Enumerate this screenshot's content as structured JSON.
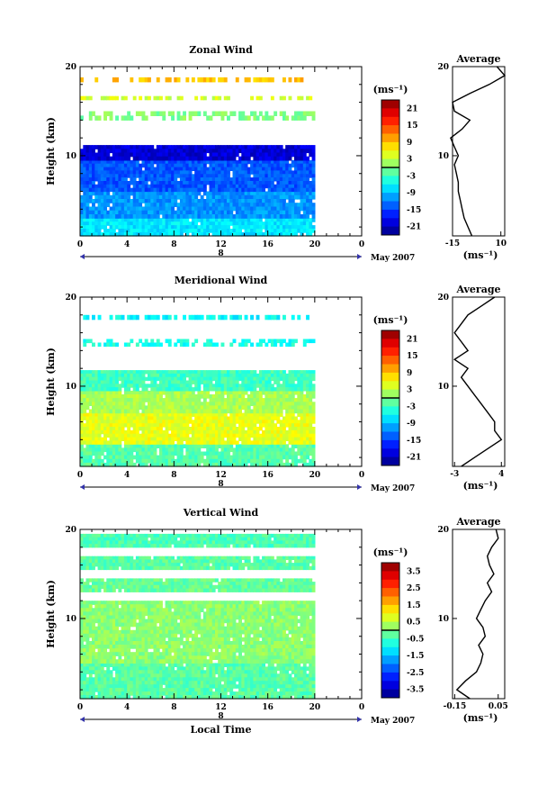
{
  "chart_data": [
    {
      "type": "heatmap",
      "title": "Zonal Wind",
      "ylabel": "Height (km)",
      "x_ticks": [
        "0",
        "4",
        "8",
        "12",
        "16",
        "20",
        "0"
      ],
      "y_ticks": [
        "10",
        "20"
      ],
      "xlim": [
        0,
        24
      ],
      "ylim": [
        1,
        20
      ],
      "date_marker": "8",
      "date_label": "May 2007",
      "colorbar": {
        "unit": "(ms⁻¹)",
        "ticks": [
          "21",
          "15",
          "9",
          "3",
          "-3",
          "-9",
          "-15",
          "-21"
        ],
        "range": [
          -24,
          24
        ]
      },
      "layers": [
        {
          "z0": 1.0,
          "z1": 3.0,
          "value": -7
        },
        {
          "z0": 3.0,
          "z1": 6.0,
          "value": -11
        },
        {
          "z0": 6.0,
          "z1": 9.5,
          "value": -14
        },
        {
          "z0": 9.5,
          "z1": 11.2,
          "value": -20
        },
        {
          "z0": 14.0,
          "z1": 15.0,
          "value": 0
        },
        {
          "z0": 16.3,
          "z1": 16.7,
          "value": 4
        },
        {
          "z0": 18.3,
          "z1": 18.8,
          "value": 9
        }
      ],
      "profile": {
        "title": "Average",
        "xlabel": "(ms⁻¹)",
        "x_ticks": [
          "-15",
          "10"
        ],
        "xlim": [
          -15,
          12
        ],
        "y_ticks": [
          "10",
          "20"
        ],
        "z": [
          1,
          2,
          3,
          4,
          5,
          6,
          7,
          8,
          9,
          10,
          11,
          12,
          13,
          14,
          15,
          16,
          17,
          18,
          19,
          20
        ],
        "values": [
          -5,
          -7,
          -9,
          -10,
          -11,
          -12,
          -12,
          -13,
          -14,
          -12,
          -14,
          -16,
          -10,
          -6,
          -14,
          -15,
          -6,
          4,
          12,
          8
        ]
      }
    },
    {
      "type": "heatmap",
      "title": "Meridional Wind",
      "ylabel": "Height (km)",
      "x_ticks": [
        "0",
        "4",
        "8",
        "12",
        "16",
        "20",
        "0"
      ],
      "y_ticks": [
        "10",
        "20"
      ],
      "xlim": [
        0,
        24
      ],
      "ylim": [
        1,
        20
      ],
      "date_marker": "8",
      "date_label": "May 2007",
      "colorbar": {
        "unit": "(ms⁻¹)",
        "ticks": [
          "21",
          "15",
          "9",
          "3",
          "-3",
          "-9",
          "-15",
          "-21"
        ],
        "range": [
          -24,
          24
        ]
      },
      "layers": [
        {
          "z0": 1.0,
          "z1": 3.5,
          "value": -2
        },
        {
          "z0": 3.5,
          "z1": 7.0,
          "value": 5
        },
        {
          "z0": 7.0,
          "z1": 9.5,
          "value": 2
        },
        {
          "z0": 9.5,
          "z1": 11.8,
          "value": -3
        },
        {
          "z0": 14.5,
          "z1": 15.3,
          "value": -5
        },
        {
          "z0": 17.5,
          "z1": 18.0,
          "value": -6
        }
      ],
      "profile": {
        "title": "Average",
        "xlabel": "(ms⁻¹)",
        "x_ticks": [
          "-3",
          "4"
        ],
        "xlim": [
          -3.3,
          4.5
        ],
        "y_ticks": [
          "10",
          "20"
        ],
        "z": [
          1,
          2,
          3,
          4,
          5,
          6,
          7,
          8,
          9,
          10,
          11,
          12,
          13,
          14,
          15,
          16,
          17,
          18,
          19,
          20
        ],
        "values": [
          -2,
          0,
          2,
          4,
          3,
          3,
          2,
          1,
          0,
          -1,
          -2,
          -1,
          -3,
          -1,
          -2,
          -3,
          -2,
          -1,
          1,
          3
        ]
      }
    },
    {
      "type": "heatmap",
      "title": "Vertical Wind",
      "ylabel": "Height (km)",
      "xlabel": "Local Time",
      "x_ticks": [
        "0",
        "4",
        "8",
        "12",
        "16",
        "20",
        "0"
      ],
      "y_ticks": [
        "10",
        "20"
      ],
      "xlim": [
        0,
        24
      ],
      "ylim": [
        1,
        20
      ],
      "date_marker": "8",
      "date_label": "May 2007",
      "colorbar": {
        "unit": "(ms⁻¹)",
        "ticks": [
          "3.5",
          "2.5",
          "1.5",
          "0.5",
          "-0.5",
          "-1.5",
          "-2.5",
          "-3.5"
        ],
        "range": [
          -4,
          4
        ]
      },
      "layers": [
        {
          "z0": 1.0,
          "z1": 5.0,
          "value": -0.3
        },
        {
          "z0": 5.0,
          "z1": 12.0,
          "value": 0.1
        },
        {
          "z0": 13.0,
          "z1": 14.5,
          "value": -0.2
        },
        {
          "z0": 15.5,
          "z1": 17.0,
          "value": -0.3
        },
        {
          "z0": 18.0,
          "z1": 19.5,
          "value": -0.4
        }
      ],
      "profile": {
        "title": "Average",
        "xlabel": "(ms⁻¹)",
        "x_ticks": [
          "-0.15",
          "0.05"
        ],
        "xlim": [
          -0.16,
          0.08
        ],
        "y_ticks": [
          "10",
          "20"
        ],
        "z": [
          1,
          2,
          3,
          4,
          5,
          6,
          7,
          8,
          9,
          10,
          11,
          12,
          13,
          14,
          15,
          16,
          17,
          18,
          19,
          20
        ],
        "values": [
          -0.08,
          -0.14,
          -0.1,
          -0.05,
          -0.03,
          -0.02,
          -0.04,
          -0.01,
          -0.02,
          -0.05,
          -0.03,
          -0.01,
          0.02,
          0.0,
          0.03,
          0.01,
          0.0,
          0.02,
          0.05,
          0.04
        ]
      }
    }
  ]
}
